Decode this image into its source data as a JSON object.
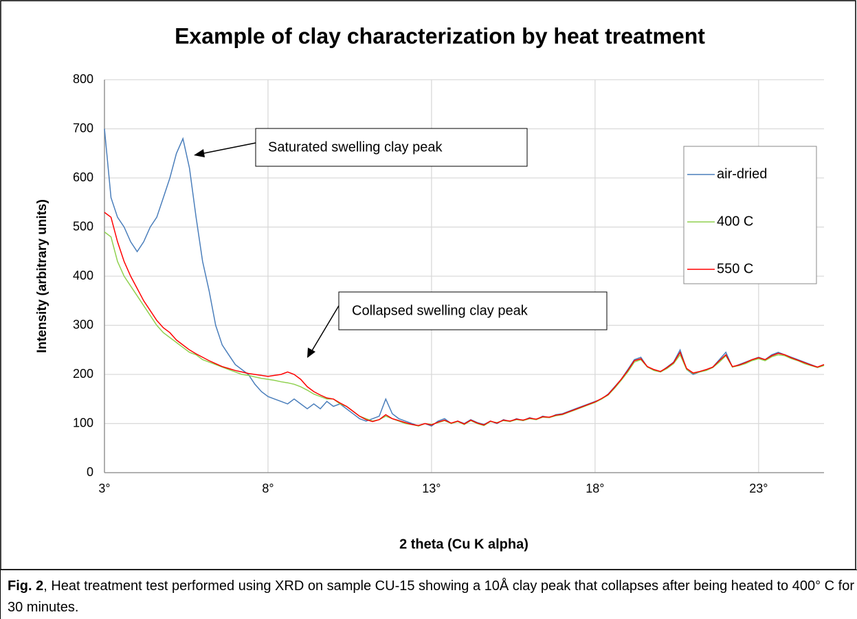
{
  "chart_data": {
    "type": "line",
    "title": "Example of clay characterization by heat treatment",
    "xlabel": "2 theta (Cu K alpha)",
    "ylabel": "Intensity (arbitrary units)",
    "xlim": [
      3,
      25
    ],
    "xticks": [
      {
        "value": 3,
        "label": "3°"
      },
      {
        "value": 8,
        "label": "8°"
      },
      {
        "value": 13,
        "label": "13°"
      },
      {
        "value": 18,
        "label": "18°"
      },
      {
        "value": 23,
        "label": "23°"
      }
    ],
    "ylim": [
      0,
      800
    ],
    "yticks": [
      0,
      100,
      200,
      300,
      400,
      500,
      600,
      700,
      800
    ],
    "grid": true,
    "legend": "right",
    "annotations": [
      "Saturated swelling clay peak",
      "Collapsed swelling clay peak"
    ],
    "x": [
      3,
      3.2,
      3.4,
      3.6,
      3.8,
      4,
      4.2,
      4.4,
      4.6,
      4.8,
      5,
      5.2,
      5.4,
      5.6,
      5.8,
      6,
      6.2,
      6.4,
      6.6,
      6.8,
      7,
      7.2,
      7.4,
      7.6,
      7.8,
      8,
      8.2,
      8.4,
      8.6,
      8.8,
      9,
      9.2,
      9.4,
      9.6,
      9.8,
      10,
      10.2,
      10.4,
      10.6,
      10.8,
      11,
      11.2,
      11.4,
      11.6,
      11.8,
      12,
      12.2,
      12.4,
      12.6,
      12.8,
      13,
      13.2,
      13.4,
      13.6,
      13.8,
      14,
      14.2,
      14.4,
      14.6,
      14.8,
      15,
      15.2,
      15.4,
      15.6,
      15.8,
      16,
      16.2,
      16.4,
      16.6,
      16.8,
      17,
      17.2,
      17.4,
      17.6,
      17.8,
      18,
      18.2,
      18.4,
      18.6,
      18.8,
      19,
      19.2,
      19.4,
      19.6,
      19.8,
      20,
      20.2,
      20.4,
      20.6,
      20.8,
      21,
      21.2,
      21.4,
      21.6,
      21.8,
      22,
      22.2,
      22.4,
      22.6,
      22.8,
      23,
      23.2,
      23.4,
      23.6,
      23.8,
      24,
      24.2,
      24.4,
      24.6,
      24.8,
      25
    ],
    "series": [
      {
        "name": "air-dried",
        "color": "#4a7ebb",
        "values": [
          700,
          560,
          520,
          500,
          470,
          450,
          470,
          500,
          520,
          560,
          600,
          650,
          680,
          620,
          520,
          430,
          370,
          300,
          260,
          240,
          220,
          210,
          200,
          180,
          165,
          155,
          150,
          145,
          140,
          150,
          140,
          130,
          140,
          130,
          145,
          135,
          140,
          130,
          120,
          110,
          105,
          110,
          115,
          150,
          120,
          110,
          105,
          100,
          95,
          100,
          95,
          105,
          110,
          100,
          105,
          100,
          108,
          102,
          98,
          105,
          100,
          108,
          104,
          110,
          106,
          112,
          108,
          115,
          112,
          118,
          120,
          125,
          130,
          135,
          140,
          145,
          150,
          160,
          175,
          190,
          210,
          230,
          235,
          215,
          210,
          205,
          215,
          225,
          250,
          210,
          200,
          205,
          210,
          215,
          230,
          245,
          215,
          220,
          225,
          230,
          235,
          230,
          240,
          245,
          240,
          235,
          230,
          225,
          220,
          215,
          220
        ]
      },
      {
        "name": "400 C",
        "color": "#8fd14f",
        "values": [
          490,
          480,
          430,
          400,
          380,
          360,
          340,
          320,
          300,
          285,
          275,
          265,
          255,
          245,
          240,
          230,
          225,
          220,
          215,
          210,
          205,
          200,
          198,
          195,
          192,
          190,
          188,
          185,
          183,
          180,
          175,
          168,
          160,
          155,
          150,
          150,
          140,
          135,
          125,
          115,
          110,
          105,
          108,
          115,
          110,
          105,
          100,
          98,
          95,
          100,
          98,
          102,
          106,
          100,
          104,
          98,
          106,
          100,
          96,
          104,
          102,
          106,
          104,
          108,
          106,
          110,
          108,
          113,
          112,
          116,
          118,
          123,
          128,
          133,
          138,
          143,
          150,
          158,
          172,
          188,
          205,
          225,
          230,
          215,
          208,
          205,
          212,
          222,
          240,
          210,
          202,
          205,
          208,
          214,
          225,
          238,
          215,
          218,
          222,
          228,
          232,
          228,
          236,
          240,
          238,
          232,
          228,
          222,
          218,
          214,
          218
        ]
      },
      {
        "name": "550 C",
        "color": "#ff0000",
        "values": [
          530,
          520,
          470,
          430,
          400,
          375,
          350,
          330,
          310,
          295,
          285,
          270,
          260,
          250,
          242,
          235,
          228,
          222,
          216,
          212,
          208,
          205,
          202,
          200,
          198,
          196,
          198,
          200,
          205,
          200,
          190,
          175,
          165,
          158,
          152,
          150,
          142,
          135,
          125,
          115,
          108,
          104,
          108,
          118,
          110,
          106,
          102,
          98,
          96,
          100,
          97,
          103,
          107,
          101,
          105,
          99,
          107,
          101,
          97,
          105,
          101,
          107,
          105,
          109,
          107,
          111,
          109,
          114,
          113,
          117,
          119,
          124,
          129,
          134,
          139,
          144,
          151,
          159,
          174,
          190,
          208,
          228,
          232,
          216,
          210,
          206,
          214,
          224,
          245,
          212,
          203,
          206,
          210,
          215,
          228,
          240,
          216,
          219,
          224,
          230,
          234,
          230,
          238,
          243,
          240,
          234,
          229,
          224,
          219,
          215,
          220
        ]
      }
    ]
  },
  "caption": {
    "label": "Fig. 2",
    "text": ", Heat treatment test performed using XRD on sample CU-15 showing a 10Å clay peak that collapses after being heated to 400° C for 30 minutes."
  }
}
